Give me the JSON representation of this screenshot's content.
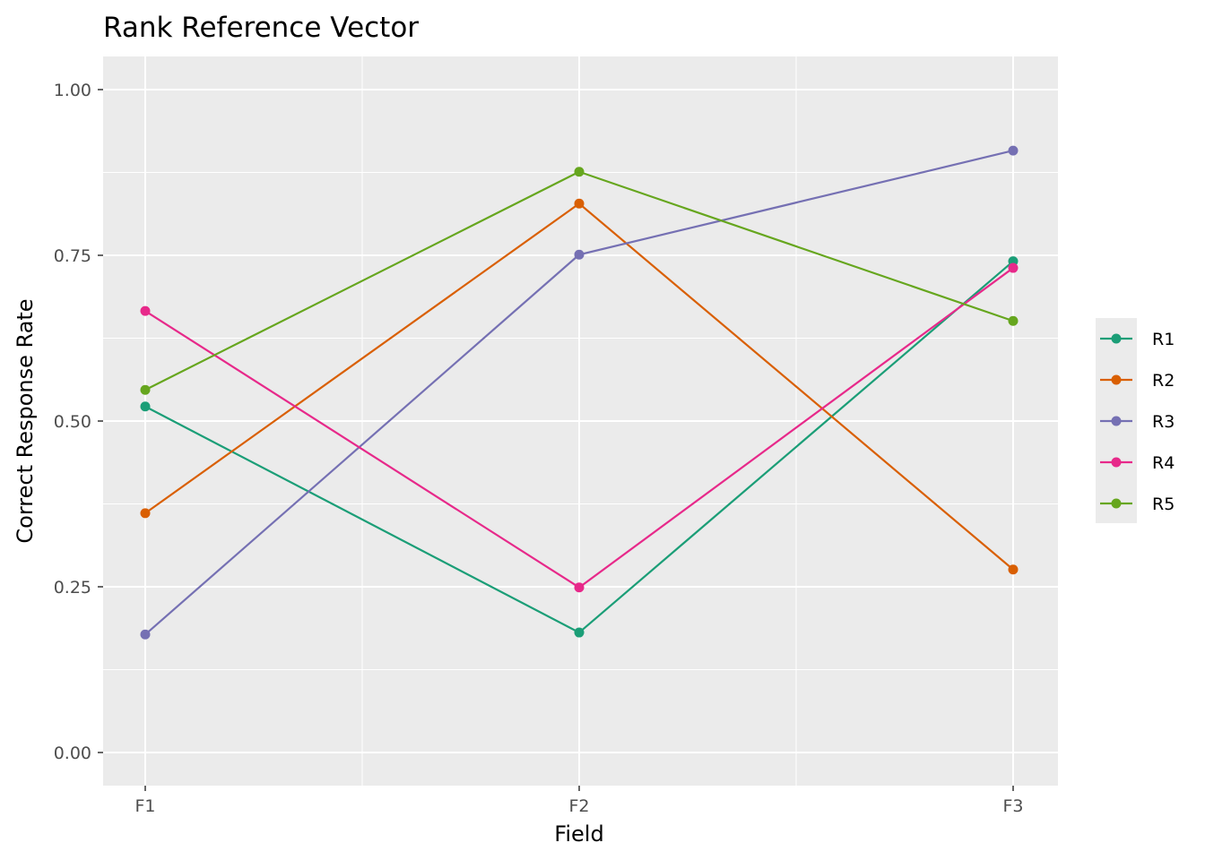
{
  "chart_data": {
    "type": "line",
    "title": "Rank Reference Vector",
    "xlabel": "Field",
    "ylabel": "Correct Response Rate",
    "categories": [
      "F1",
      "F2",
      "F3"
    ],
    "ylim": [
      -0.05,
      1.05
    ],
    "yticks": [
      0,
      0.25,
      0.5,
      0.75,
      1
    ],
    "ytick_labels": [
      "0.00",
      "0.25",
      "0.50",
      "0.75",
      "1.00"
    ],
    "grid": true,
    "legend": "right",
    "series": [
      {
        "name": "R1",
        "color": "#1B9E77",
        "values": [
          0.522,
          0.181,
          0.741
        ]
      },
      {
        "name": "R2",
        "color": "#D95F02",
        "values": [
          0.361,
          0.828,
          0.276
        ]
      },
      {
        "name": "R3",
        "color": "#7570B3",
        "values": [
          0.178,
          0.751,
          0.908
        ]
      },
      {
        "name": "R4",
        "color": "#E7298A",
        "values": [
          0.666,
          0.249,
          0.731
        ]
      },
      {
        "name": "R5",
        "color": "#66A61E",
        "values": [
          0.547,
          0.876,
          0.651
        ]
      }
    ]
  }
}
